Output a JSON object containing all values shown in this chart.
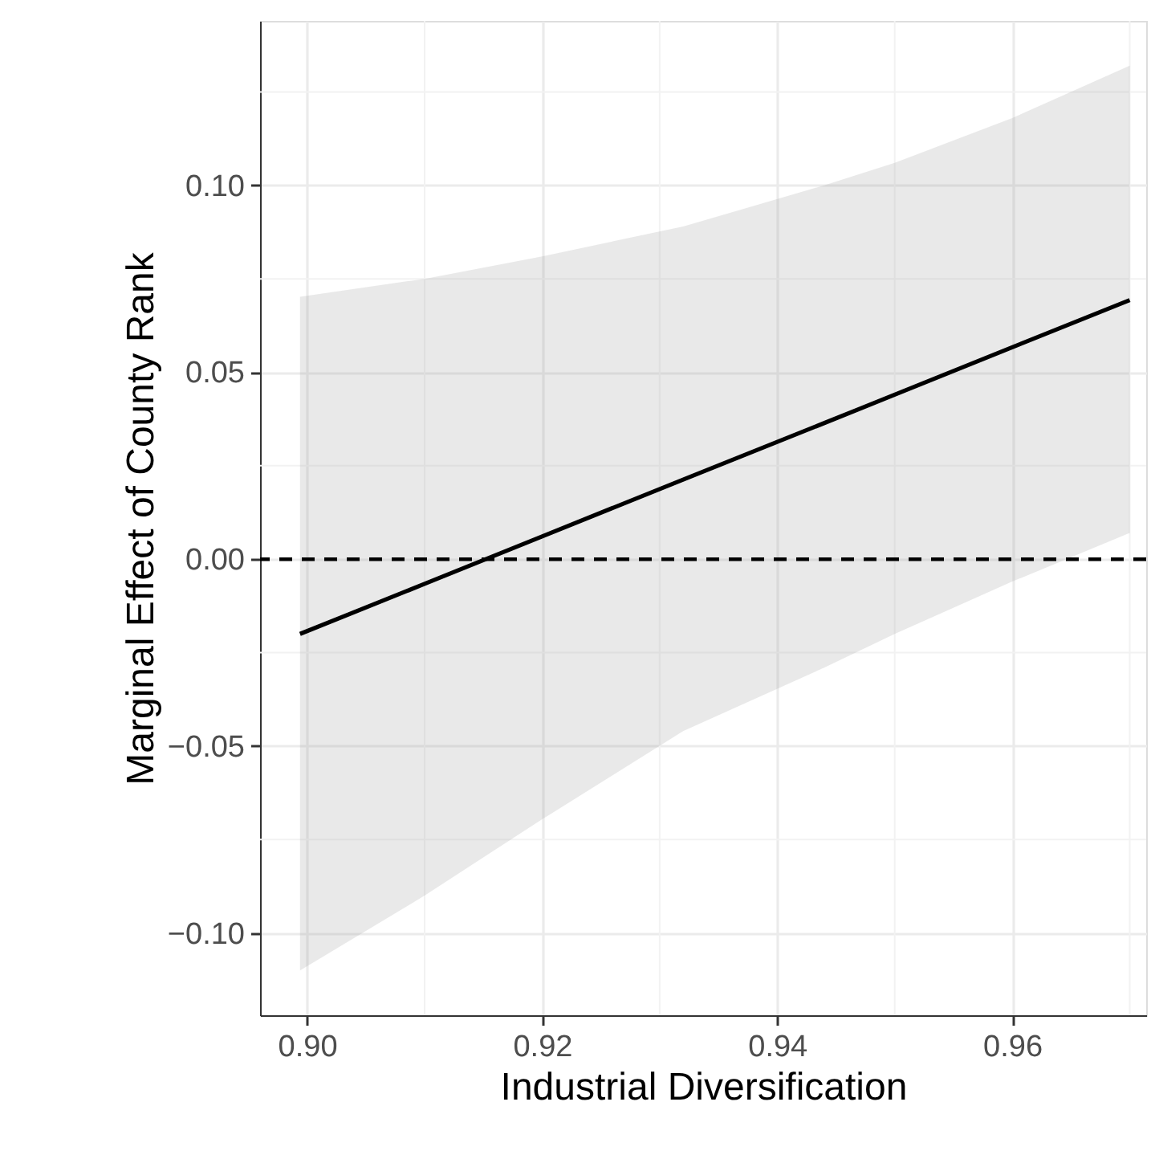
{
  "chart_data": {
    "type": "line",
    "xlabel": "Industrial Diversification",
    "ylabel": "Marginal Effect of County Rank",
    "x": [
      0.8994,
      0.91,
      0.92,
      0.932,
      0.944,
      0.95,
      0.96,
      0.97
    ],
    "series": [
      {
        "color": "#000000",
        "values": [
          -0.02,
          -0.0066,
          0.0061,
          0.0213,
          0.0364,
          0.044,
          0.0567,
          0.0693
        ],
        "lower": [
          -0.11,
          -0.09,
          -0.0696,
          -0.046,
          -0.029,
          -0.02,
          -0.006,
          0.007
        ],
        "upper": [
          0.0702,
          0.075,
          0.081,
          0.089,
          0.1,
          0.106,
          0.118,
          0.132
        ]
      }
    ],
    "xlim": [
      0.896,
      0.9714
    ],
    "ylim": [
      -0.122,
      0.144
    ],
    "xticks": [
      {
        "value": 0.9,
        "label": "0.90"
      },
      {
        "value": 0.92,
        "label": "0.92"
      },
      {
        "value": 0.94,
        "label": "0.94"
      },
      {
        "value": 0.96,
        "label": "0.96"
      }
    ],
    "yticks": [
      {
        "value": -0.1,
        "label": "−0.10"
      },
      {
        "value": -0.05,
        "label": "−0.05"
      },
      {
        "value": 0,
        "label": "0.00"
      },
      {
        "value": 0.05,
        "label": "0.05"
      },
      {
        "value": 0.1,
        "label": "0.10"
      }
    ],
    "ref_lines": [
      {
        "axis": "y",
        "value": 0,
        "color": "#000000",
        "line_style": "dashed"
      }
    ],
    "grid": true,
    "line_style": "solid",
    "marker": "none"
  }
}
